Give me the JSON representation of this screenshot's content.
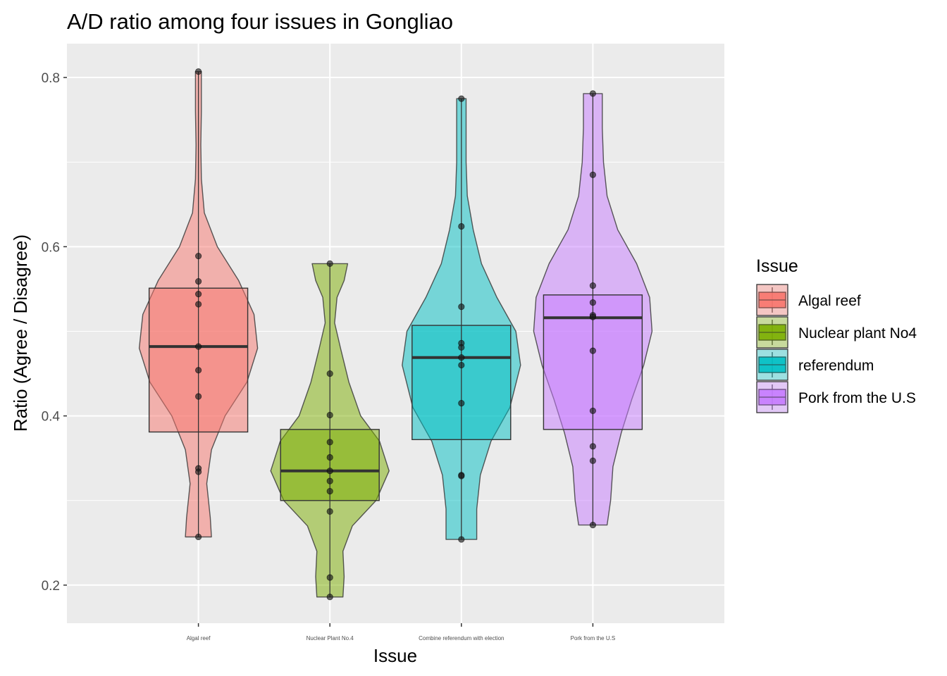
{
  "chart_data": {
    "type": "violin+box",
    "title": "A/D ratio among four issues in Gongliao",
    "xlabel": "Issue",
    "ylabel": "Ratio (Agree / Disagree)",
    "ylim": [
      0.155,
      0.84
    ],
    "yticks": [
      0.2,
      0.4,
      0.6,
      0.8
    ],
    "ytick_labels": [
      "0.2",
      "0.4",
      "0.6",
      "0.8"
    ],
    "grid": true,
    "background": "#ebebeb",
    "legend": {
      "title": "Issue",
      "position": "right",
      "entries": [
        {
          "label": "Algal reef",
          "color": "#f8766d"
        },
        {
          "label": "Nuclear plant No4",
          "color": "#7cae00"
        },
        {
          "label": "referendum",
          "color": "#00bfc4"
        },
        {
          "label": "Pork from the U.S",
          "color": "#c77cff"
        }
      ]
    },
    "categories": [
      "Algal reef",
      "Nuclear Plant No.4",
      "Combine referendum with election",
      "Pork from the U.S"
    ],
    "groups": [
      {
        "category": "Algal reef",
        "color": "#f8766d",
        "box": {
          "q1": 0.381,
          "median": 0.482,
          "q3": 0.551,
          "min": 0.257,
          "max": 0.807
        },
        "points": [
          0.807,
          0.589,
          0.559,
          0.544,
          0.532,
          0.482,
          0.454,
          0.423,
          0.338,
          0.334,
          0.257
        ],
        "violin": [
          [
            0.257,
            0.22
          ],
          [
            0.28,
            0.2
          ],
          [
            0.32,
            0.14
          ],
          [
            0.36,
            0.22
          ],
          [
            0.4,
            0.45
          ],
          [
            0.44,
            0.82
          ],
          [
            0.48,
            1.0
          ],
          [
            0.52,
            0.94
          ],
          [
            0.56,
            0.68
          ],
          [
            0.6,
            0.32
          ],
          [
            0.64,
            0.1
          ],
          [
            0.68,
            0.05
          ],
          [
            0.72,
            0.04
          ],
          [
            0.76,
            0.05
          ],
          [
            0.807,
            0.05
          ]
        ]
      },
      {
        "category": "Nuclear Plant No.4",
        "color": "#7cae00",
        "box": {
          "q1": 0.3,
          "median": 0.335,
          "q3": 0.384,
          "min": 0.186,
          "max": 0.58
        },
        "points": [
          0.58,
          0.45,
          0.401,
          0.369,
          0.351,
          0.335,
          0.323,
          0.311,
          0.287,
          0.209,
          0.186
        ],
        "violin": [
          [
            0.186,
            0.22
          ],
          [
            0.21,
            0.24
          ],
          [
            0.24,
            0.22
          ],
          [
            0.27,
            0.38
          ],
          [
            0.3,
            0.78
          ],
          [
            0.335,
            1.0
          ],
          [
            0.37,
            0.84
          ],
          [
            0.4,
            0.52
          ],
          [
            0.44,
            0.32
          ],
          [
            0.48,
            0.18
          ],
          [
            0.51,
            0.08
          ],
          [
            0.54,
            0.12
          ],
          [
            0.56,
            0.24
          ],
          [
            0.58,
            0.3
          ]
        ]
      },
      {
        "category": "Combine referendum with election",
        "color": "#00bfc4",
        "box": {
          "q1": 0.372,
          "median": 0.469,
          "q3": 0.507,
          "min": 0.254,
          "max": 0.775
        },
        "points": [
          0.775,
          0.624,
          0.529,
          0.486,
          0.481,
          0.469,
          0.46,
          0.415,
          0.33,
          0.329,
          0.254
        ],
        "violin": [
          [
            0.254,
            0.26
          ],
          [
            0.29,
            0.26
          ],
          [
            0.33,
            0.32
          ],
          [
            0.37,
            0.5
          ],
          [
            0.41,
            0.82
          ],
          [
            0.46,
            1.0
          ],
          [
            0.5,
            0.92
          ],
          [
            0.54,
            0.6
          ],
          [
            0.58,
            0.34
          ],
          [
            0.62,
            0.2
          ],
          [
            0.66,
            0.1
          ],
          [
            0.7,
            0.08
          ],
          [
            0.74,
            0.08
          ],
          [
            0.775,
            0.08
          ]
        ]
      },
      {
        "category": "Pork from the U.S",
        "color": "#c77cff",
        "box": {
          "q1": 0.384,
          "median": 0.516,
          "q3": 0.543,
          "min": 0.271,
          "max": 0.781
        },
        "points": [
          0.781,
          0.685,
          0.554,
          0.534,
          0.519,
          0.517,
          0.477,
          0.406,
          0.364,
          0.347,
          0.271
        ],
        "violin": [
          [
            0.271,
            0.24
          ],
          [
            0.3,
            0.3
          ],
          [
            0.34,
            0.34
          ],
          [
            0.38,
            0.48
          ],
          [
            0.42,
            0.66
          ],
          [
            0.46,
            0.86
          ],
          [
            0.5,
            1.0
          ],
          [
            0.54,
            0.96
          ],
          [
            0.58,
            0.74
          ],
          [
            0.62,
            0.42
          ],
          [
            0.66,
            0.24
          ],
          [
            0.7,
            0.18
          ],
          [
            0.74,
            0.16
          ],
          [
            0.781,
            0.16
          ]
        ]
      }
    ]
  }
}
